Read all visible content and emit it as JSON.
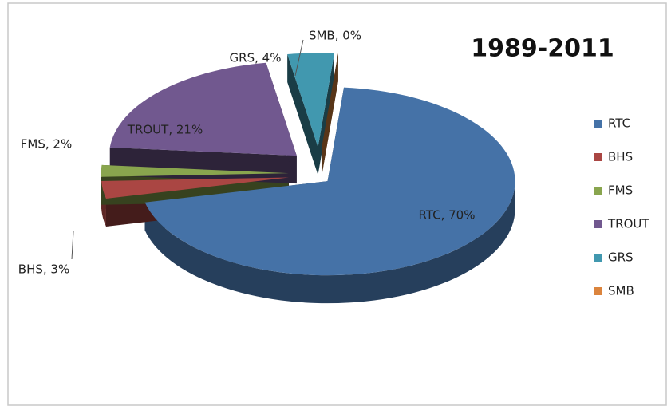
{
  "chart_data": {
    "type": "pie",
    "title": "1989-2011",
    "categories": [
      "RTC",
      "BHS",
      "FMS",
      "TROUT",
      "GRS",
      "SMB"
    ],
    "values": [
      70,
      3,
      2,
      21,
      4,
      0
    ],
    "value_labels": [
      "RTC, 70%",
      "BHS, 3%",
      "FMS, 2%",
      "TROUT, 21%",
      "GRS, 4%",
      "SMB, 0%"
    ],
    "colors": [
      "#4572a7",
      "#aa4643",
      "#89a54e",
      "#71588f",
      "#4198af",
      "#db843d"
    ],
    "legend": "right"
  }
}
